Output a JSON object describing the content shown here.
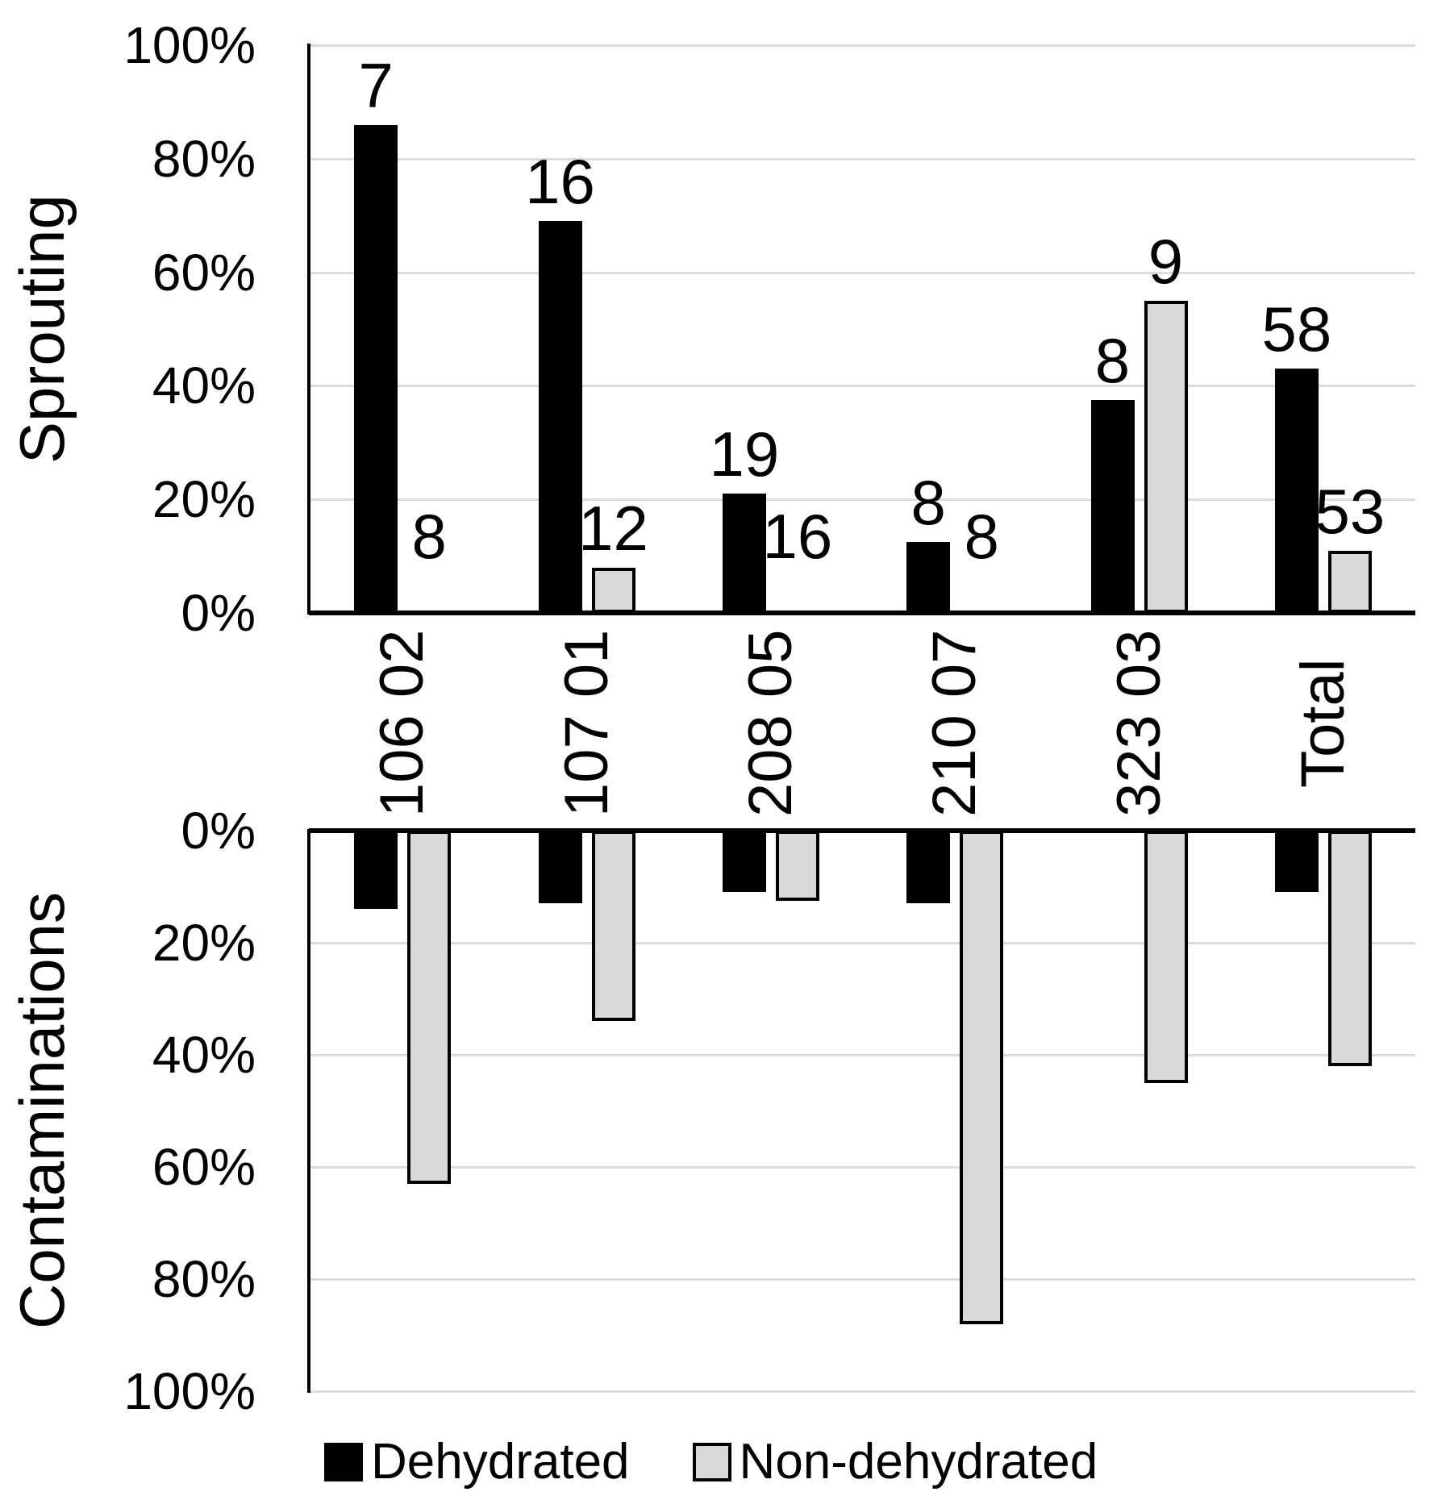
{
  "figure": {
    "background": "#ffffff",
    "gridline_color": "#dcdcdc",
    "axis_color": "#000000"
  },
  "chart_data": [
    {
      "type": "bar",
      "panel": "top",
      "orientation": "up",
      "ylabel": "Sprouting",
      "ylim": [
        0,
        100
      ],
      "grid": true,
      "yticks": [
        "100%",
        "80%",
        "60%",
        "40%",
        "20%",
        "0%"
      ],
      "categories": [
        "106 02",
        "107 01",
        "208 05",
        "210 07",
        "323 03",
        "Total"
      ],
      "series": [
        {
          "name": "Dehydrated",
          "color": "#000000",
          "values": [
            86,
            69,
            21,
            12.5,
            37.5,
            43
          ],
          "data_labels": [
            "7",
            "16",
            "19",
            "8",
            "8",
            "58"
          ]
        },
        {
          "name": "Non-dehydrated",
          "color": "#d9d9d9",
          "values": [
            0,
            8,
            0,
            0,
            55,
            11
          ],
          "data_labels": [
            "8",
            "12",
            "16",
            "8",
            "9",
            "53"
          ]
        }
      ]
    },
    {
      "type": "bar",
      "panel": "bottom",
      "orientation": "down",
      "ylabel": "Contaminations",
      "ylim": [
        0,
        100
      ],
      "grid": true,
      "yticks": [
        "0%",
        "20%",
        "40%",
        "60%",
        "80%",
        "100%"
      ],
      "categories": [
        "106 02",
        "107 01",
        "208 05",
        "210 07",
        "323 03",
        "Total"
      ],
      "series": [
        {
          "name": "Dehydrated",
          "color": "#000000",
          "values": [
            14,
            13,
            11,
            13,
            0,
            11
          ],
          "data_labels": []
        },
        {
          "name": "Non-dehydrated",
          "color": "#d9d9d9",
          "values": [
            63,
            34,
            12.5,
            88,
            45,
            42
          ],
          "data_labels": []
        }
      ]
    }
  ],
  "legend": {
    "position": "bottom",
    "items": [
      {
        "label": "Dehydrated",
        "color": "#000000"
      },
      {
        "label": "Non-dehydrated",
        "color": "#d9d9d9",
        "border": "#000000"
      }
    ]
  }
}
